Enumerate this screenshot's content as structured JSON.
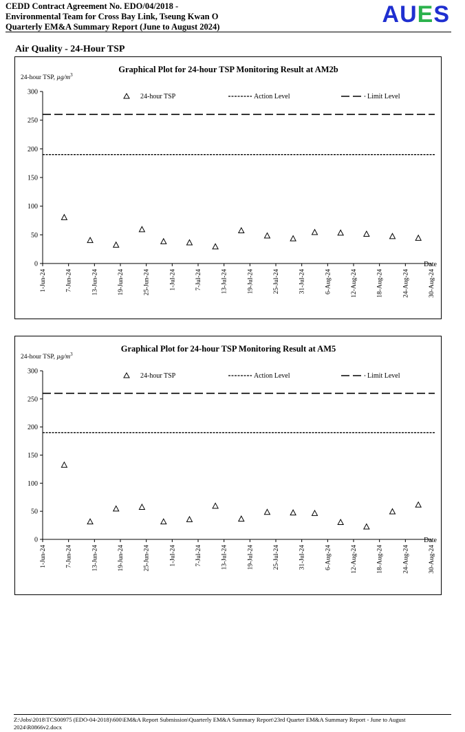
{
  "header": {
    "line1": "CEDD Contract Agreement No. EDO/04/2018 -",
    "line2": "Environmental Team for Cross Bay Link, Tseung Kwan O",
    "line3": "Quarterly EM&A Summary Report (June to August 2024)",
    "logo": {
      "A": "A",
      "U": "U",
      "E": "E",
      "S": "S",
      "colors": {
        "A": "#1f2fd0",
        "U": "#1f2fd0",
        "E": "#2bb24c",
        "S": "#1f2fd0"
      }
    }
  },
  "section_title": "Air Quality - 24-Hour TSP",
  "footer": {
    "path": "Z:\\Jobs\\2018\\TCS00975 (EDO-04-2018)\\600\\EM&A Report Submission\\Quarterly EM&A Summary Report\\23rd Quarter EM&A Summary Report - June to August 2024\\R0866v2.docx"
  },
  "chart_data": [
    {
      "type": "scatter",
      "title": "Graphical Plot for 24-hour TSP Monitoring Result at AM2b",
      "ylabel_main": "24-hour TSP, ",
      "ylabel_unit": "µg/m",
      "ylabel_sup": "3",
      "xlabel": "Date",
      "ylim": [
        0,
        300
      ],
      "yticks": [
        "0",
        "50",
        "100",
        "150",
        "200",
        "250",
        "300"
      ],
      "xlim": [
        "2024-06-01",
        "2024-08-30"
      ],
      "xticks": [
        "1-Jun-24",
        "7-Jun-24",
        "13-Jun-24",
        "19-Jun-24",
        "25-Jun-24",
        "1-Jul-24",
        "7-Jul-24",
        "13-Jul-24",
        "19-Jul-24",
        "25-Jul-24",
        "31-Jul-24",
        "6-Aug-24",
        "12-Aug-24",
        "18-Aug-24",
        "24-Aug-24",
        "30-Aug-24"
      ],
      "legend": {
        "tsp": "24-hour TSP",
        "action": "Action Level",
        "limit": "Limit Level"
      },
      "action_level": 190,
      "limit_level": 260,
      "series": [
        {
          "name": "24-hour TSP",
          "points": [
            {
              "x": "2024-06-06",
              "y": 80
            },
            {
              "x": "2024-06-12",
              "y": 40
            },
            {
              "x": "2024-06-18",
              "y": 32
            },
            {
              "x": "2024-06-24",
              "y": 59
            },
            {
              "x": "2024-06-29",
              "y": 38
            },
            {
              "x": "2024-07-05",
              "y": 36
            },
            {
              "x": "2024-07-11",
              "y": 29
            },
            {
              "x": "2024-07-17",
              "y": 57
            },
            {
              "x": "2024-07-23",
              "y": 48
            },
            {
              "x": "2024-07-29",
              "y": 43
            },
            {
              "x": "2024-08-03",
              "y": 54
            },
            {
              "x": "2024-08-09",
              "y": 53
            },
            {
              "x": "2024-08-15",
              "y": 51
            },
            {
              "x": "2024-08-21",
              "y": 47
            },
            {
              "x": "2024-08-27",
              "y": 44
            }
          ]
        }
      ]
    },
    {
      "type": "scatter",
      "title": "Graphical Plot for 24-hour TSP Monitoring Result at AM5",
      "ylabel_main": "24-hour TSP, ",
      "ylabel_unit": "µg/m",
      "ylabel_sup": "3",
      "xlabel": "Date",
      "ylim": [
        0,
        300
      ],
      "yticks": [
        "0",
        "50",
        "100",
        "150",
        "200",
        "250",
        "300"
      ],
      "xlim": [
        "2024-06-01",
        "2024-08-30"
      ],
      "xticks": [
        "1-Jun-24",
        "7-Jun-24",
        "13-Jun-24",
        "19-Jun-24",
        "25-Jun-24",
        "1-Jul-24",
        "7-Jul-24",
        "13-Jul-24",
        "19-Jul-24",
        "25-Jul-24",
        "31-Jul-24",
        "6-Aug-24",
        "12-Aug-24",
        "18-Aug-24",
        "24-Aug-24",
        "30-Aug-24"
      ],
      "legend": {
        "tsp": "24-hour TSP",
        "action": "Action Level",
        "limit": "Limit Level"
      },
      "action_level": 190,
      "limit_level": 260,
      "series": [
        {
          "name": "24-hour TSP",
          "points": [
            {
              "x": "2024-06-06",
              "y": 132
            },
            {
              "x": "2024-06-12",
              "y": 31
            },
            {
              "x": "2024-06-18",
              "y": 54
            },
            {
              "x": "2024-06-24",
              "y": 57
            },
            {
              "x": "2024-06-29",
              "y": 31
            },
            {
              "x": "2024-07-05",
              "y": 35
            },
            {
              "x": "2024-07-11",
              "y": 59
            },
            {
              "x": "2024-07-17",
              "y": 36
            },
            {
              "x": "2024-07-23",
              "y": 48
            },
            {
              "x": "2024-07-29",
              "y": 47
            },
            {
              "x": "2024-08-03",
              "y": 46
            },
            {
              "x": "2024-08-09",
              "y": 30
            },
            {
              "x": "2024-08-15",
              "y": 22
            },
            {
              "x": "2024-08-21",
              "y": 49
            },
            {
              "x": "2024-08-27",
              "y": 61
            }
          ]
        }
      ]
    }
  ]
}
